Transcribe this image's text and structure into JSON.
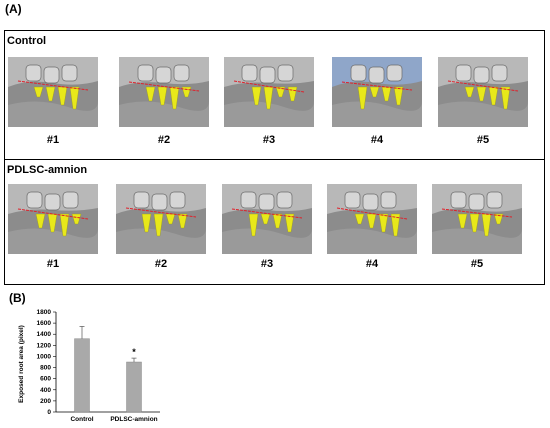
{
  "panel_a_label": "(A)",
  "panel_b_label": "(B)",
  "groups": [
    {
      "title": "Control",
      "samples": [
        {
          "label": "#1"
        },
        {
          "label": "#2"
        },
        {
          "label": "#3"
        },
        {
          "label": "#4"
        },
        {
          "label": "#5"
        }
      ]
    },
    {
      "title": "PDLSC-amnion",
      "samples": [
        {
          "label": "#1"
        },
        {
          "label": "#2"
        },
        {
          "label": "#3"
        },
        {
          "label": "#4"
        },
        {
          "label": "#5"
        }
      ]
    }
  ],
  "colors": {
    "root_highlight": "#e8e81a",
    "cej_line": "#e0202a",
    "bar_fill": "#a9a9a9",
    "bone_gray": "#8c8c8c",
    "background_blue": "#8fa6c9"
  },
  "chart_data": {
    "type": "bar",
    "categories": [
      "Control",
      "PDLSC-amnion"
    ],
    "values": [
      1320,
      900
    ],
    "errors": [
      220,
      70
    ],
    "significance": [
      "",
      "*"
    ],
    "ylabel": "Exposed root area (pixel)",
    "ylim": [
      0,
      1800
    ],
    "yticks": [
      0,
      200,
      400,
      600,
      800,
      1000,
      1200,
      1400,
      1600,
      1800
    ],
    "grid": false
  }
}
